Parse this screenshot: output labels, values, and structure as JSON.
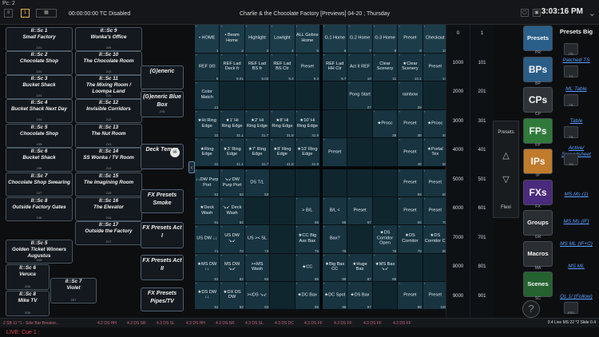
{
  "window": {
    "title": "Pc: 2"
  },
  "toolbar": {
    "mode": "1",
    "timecode": "00:00:00:00 TC Disabled",
    "show_title": "Charlie & the Chocolate Factory [Previews] 04-20 ; Thursday",
    "clock": "3:03:16 PM"
  },
  "macros": [
    {
      "num": "II::Sc 1",
      "name": "Small Factory",
      "id": "101"
    },
    {
      "num": "II::Sc 2",
      "name": "Chocolate Shop",
      "id": "102"
    },
    {
      "num": "II::Sc 3",
      "name": "Bucket Shack",
      "id": "103"
    },
    {
      "num": "II::Sc 4",
      "name": "Bucket Shack Next Day",
      "id": "104"
    },
    {
      "num": "II::Sc 5",
      "name": "Chocolate Shop",
      "id": "105"
    },
    {
      "num": "II::Sc 6",
      "name": "Bucket Shack",
      "id": "106"
    },
    {
      "num": "II::Sc 7",
      "name": "Chocolate Shop Swearing",
      "id": "107"
    },
    {
      "num": "II::Sc 8",
      "name": "Outside Factory Gates",
      "id": "108"
    },
    {
      "num": "II::Sc 9",
      "name": "Wonka's Office",
      "id": "209"
    },
    {
      "num": "II::Sc 10",
      "name": "The Chocolate Room",
      "id": "210"
    },
    {
      "num": "II::Sc 11",
      "name": "The Mixing Room / Loompa Land",
      "id": "211"
    },
    {
      "num": "II::Sc 12",
      "name": "Invisible Corridors",
      "id": "212"
    },
    {
      "num": "II::Sc 13",
      "name": "The Nut Room",
      "id": "213"
    },
    {
      "num": "II::Sc 14",
      "name": "SS Wonka / TV Room",
      "id": "214"
    },
    {
      "num": "II::Sc 15",
      "name": "The Imagining Room",
      "id": "215"
    },
    {
      "num": "II::Sc 16",
      "name": "The Elevator",
      "id": "216"
    },
    {
      "num": "II::Sc 17",
      "name": "Outside the Factory",
      "id": "217"
    },
    {
      "num": "II::Sc 5",
      "name": "Golden Ticket Winners Augustus",
      "id": "205"
    },
    {
      "num": "II::Sc 6",
      "name": "Veruca",
      "id": "206"
    },
    {
      "num": "II::Sc 8",
      "name": "Mike TV",
      "id": "208"
    },
    {
      "num": "II::Sc 7",
      "name": "Violet",
      "id": "207"
    }
  ],
  "side_macros": [
    {
      "name": "(G)eneric",
      "id": ""
    },
    {
      "name": "(G)eneric Blue Box",
      "id": "276"
    },
    {
      "name": "Deck Temps",
      "id": ""
    },
    {
      "name": "FX Presets Smoke",
      "id": ""
    },
    {
      "name": "FX Presets Act I",
      "id": ""
    },
    {
      "name": "FX Presets Act II",
      "id": ""
    },
    {
      "name": "FX Presets Pipes/TV",
      "id": ""
    }
  ],
  "grid_a": [
    [
      "• HOME",
      "• Beam Home",
      "Highlight",
      "Lowlight",
      "ALL Gobos Home",
      "G.1 Home",
      "G.2 Home",
      "G.3 Home",
      "Preset",
      "Checkout"
    ],
    [
      "REF 0/0",
      "REF Lad Deck fr",
      "REF Lad BS fr",
      "REF Lad BS Ctr",
      "Preset",
      "REF Lad HH Ctr",
      "Act II REF",
      "Clear Scenery",
      "★Clear Scenery",
      "Preset"
    ],
    [
      "Color Match",
      "",
      "",
      "",
      "",
      "",
      "Pong Start",
      "",
      "rainbow",
      ""
    ],
    [
      "★Hi Ring Edge",
      "★1' Hi Ring Edge",
      "★2' Hi Ring Edge",
      "★8' Hi Ring Edge",
      "★10' Hi Ring Edge",
      "",
      "",
      "★Prosc",
      "Preset",
      "★Prosc"
    ],
    [
      "★Ring Edge",
      "★3' Ring Edge",
      "★7' Ring Edge",
      "★8' Ring Edge",
      "★10' Ring Edge",
      "Preset",
      "",
      "",
      "Preset",
      "★Portal Tex"
    ]
  ],
  "grid_a_nums": [
    [
      "1",
      "2",
      "3",
      "4",
      "5",
      "6",
      "7",
      "8",
      "9",
      "10"
    ],
    [
      "9",
      "9.01",
      "9.03",
      "9.2",
      "9.3",
      "9.7",
      "10",
      "11",
      "13.1",
      "14"
    ],
    [
      "21",
      "",
      "",
      "",
      "",
      "",
      "27",
      "",
      "29",
      ""
    ],
    [
      "31",
      "31.1",
      "31.7",
      "31.8",
      "31.9",
      "",
      "",
      "38",
      "39",
      "40"
    ],
    [
      "41",
      "41.1",
      "41.7",
      "41.8",
      "41.9",
      "",
      "",
      "",
      "49",
      "50"
    ]
  ],
  "grid_b": [
    [
      "↓↓DW Purp Port",
      "↘↙DW Purp Port",
      "DS T/L",
      "",
      "",
      "",
      "",
      "",
      "Preset",
      "Preset"
    ],
    [
      "★Deck Wash",
      "↘↙ Deck Wash",
      "",
      "",
      "> B/L",
      "B/L <",
      "Preset",
      "",
      "Preset",
      "Preset"
    ],
    [
      "US DW ↓↓",
      "US DW ↘↙",
      "US >< SL",
      "",
      "★CC Big Ass Bax",
      "Bax?",
      "",
      "★DS Corridor Open",
      "★DS Corridor",
      "★DS Corridor C"
    ],
    [
      "★MS DW ↓↓",
      "MS DW ↘↙",
      "><MS Wash",
      "",
      "★CC",
      "★Big Bax CC",
      "★Huge Bax",
      "★MS Bax ↘↙",
      "",
      ""
    ],
    [
      "★DS DW ↓↓",
      "★DX DS DW",
      "><DS ↘↙",
      "",
      "★DC Bax",
      "★DC Spot",
      "★DS Bax",
      "",
      "Preset",
      "Preset"
    ]
  ],
  "grid_b_nums": [
    [
      "51",
      "52",
      "53",
      "",
      "",
      "",
      "",
      "",
      "59",
      "60"
    ],
    [
      "61",
      "62",
      "",
      "",
      "65",
      "66",
      "67",
      "",
      "69",
      "70"
    ],
    [
      "71",
      "72",
      "73",
      "",
      "75",
      "76",
      "",
      "78",
      "79",
      "80"
    ],
    [
      "81",
      "82",
      "83",
      "",
      "85",
      "86",
      "87",
      "88",
      "",
      ""
    ],
    [
      "91",
      "92",
      "93",
      "",
      "95",
      "96",
      "97",
      "",
      "99",
      "100"
    ]
  ],
  "col1": [
    "0",
    "1000",
    "2000",
    "3000",
    "4000",
    "5000",
    "6000",
    "7000",
    "8000",
    "9000"
  ],
  "col2": [
    "1",
    "101",
    "201",
    "301",
    "401",
    "501",
    "601",
    "701",
    "801",
    "901"
  ],
  "panel": {
    "presets": "Presets",
    "flexi": "Flexi"
  },
  "pools": [
    {
      "label": "Presets",
      "color": "#2a5f8a"
    },
    {
      "label": "BPs",
      "color": "#2a5d86"
    },
    {
      "label": "CPs",
      "color": "#2f3338"
    },
    {
      "label": "FPs",
      "color": "#2f7a3a"
    },
    {
      "label": "IPs",
      "color": "#c07b2c"
    },
    {
      "label": "FXs",
      "color": "#4a2a7c"
    },
    {
      "label": "Groups",
      "color": "#2a2d31"
    },
    {
      "label": "Macros",
      "color": "#2a2d31"
    },
    {
      "label": "Scenes",
      "color": "#25622f"
    }
  ],
  "pool_caps": [
    "PR",
    "BP",
    "CP",
    "FP",
    "IP",
    "FX",
    "GR",
    "MA",
    "SC"
  ],
  "links": [
    "Presets Big",
    "Patched TS",
    "ML Table",
    "Table",
    "Active/ Spreadsheet",
    "MS Ms (1)",
    "MS Ms (IF)",
    "MS ML (IF+C)",
    "MS ML",
    "QL 1/ (Follow)"
  ],
  "link_caps": [
    "PR",
    "TS",
    "TB",
    "TB",
    "SS",
    "",
    "",
    "",
    "",
    "PSD"
  ],
  "bottom_items": [
    "2 SB 11 *1 - Side Bar Breaker...",
    "4.2 DS HH",
    "4.3 DS SR",
    "4.3 DS SL",
    "4.3 DS HH",
    "4.3 DS SR",
    "4.3 DS SL",
    "4.3 DS DC",
    "4.3 DS FF",
    "4.3 DS FF",
    "4.3 DS FF",
    "4.3 DS FF"
  ],
  "status": {
    "live_cue": "LIVE: Cue  1 :",
    "right": "3.4 Live MS 22 *2 Slide 0.4"
  }
}
